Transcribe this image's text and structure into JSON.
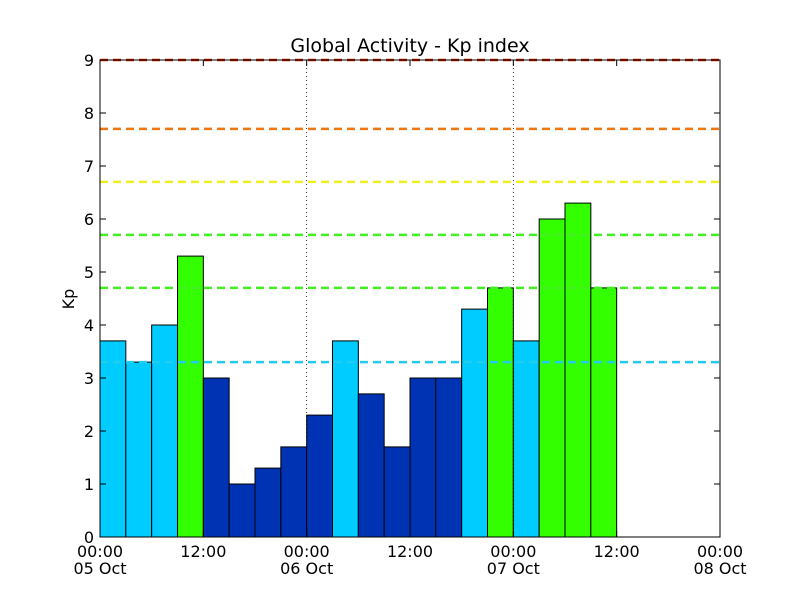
{
  "chart_data": {
    "type": "bar",
    "title": "Global Activity - Kp index",
    "xlabel": "",
    "ylabel": "Kp",
    "ylim": [
      0,
      9
    ],
    "y_ticks": [
      0,
      1,
      2,
      3,
      4,
      5,
      6,
      7,
      8,
      9
    ],
    "x_range_hours": [
      0,
      72
    ],
    "x_ticks": [
      {
        "hour": 0,
        "time": "00:00",
        "date": "05 Oct"
      },
      {
        "hour": 12,
        "time": "12:00",
        "date": ""
      },
      {
        "hour": 24,
        "time": "00:00",
        "date": "06 Oct"
      },
      {
        "hour": 36,
        "time": "12:00",
        "date": ""
      },
      {
        "hour": 48,
        "time": "00:00",
        "date": "07 Oct"
      },
      {
        "hour": 60,
        "time": "12:00",
        "date": ""
      },
      {
        "hour": 72,
        "time": "00:00",
        "date": "08 Oct"
      }
    ],
    "day_boundary_hours": [
      24,
      48
    ],
    "bars": [
      {
        "start_hour": 0,
        "value": 3.7,
        "color": "#00ccff"
      },
      {
        "start_hour": 3,
        "value": 3.3,
        "color": "#00ccff"
      },
      {
        "start_hour": 6,
        "value": 4.0,
        "color": "#00ccff"
      },
      {
        "start_hour": 9,
        "value": 5.3,
        "color": "#33ff00"
      },
      {
        "start_hour": 12,
        "value": 3.0,
        "color": "#0033b3"
      },
      {
        "start_hour": 15,
        "value": 1.0,
        "color": "#0033b3"
      },
      {
        "start_hour": 18,
        "value": 1.3,
        "color": "#0033b3"
      },
      {
        "start_hour": 21,
        "value": 1.7,
        "color": "#0033b3"
      },
      {
        "start_hour": 24,
        "value": 2.3,
        "color": "#0033b3"
      },
      {
        "start_hour": 27,
        "value": 3.7,
        "color": "#00ccff"
      },
      {
        "start_hour": 30,
        "value": 2.7,
        "color": "#0033b3"
      },
      {
        "start_hour": 33,
        "value": 1.7,
        "color": "#0033b3"
      },
      {
        "start_hour": 36,
        "value": 3.0,
        "color": "#0033b3"
      },
      {
        "start_hour": 39,
        "value": 3.0,
        "color": "#0033b3"
      },
      {
        "start_hour": 42,
        "value": 4.3,
        "color": "#00ccff"
      },
      {
        "start_hour": 45,
        "value": 4.7,
        "color": "#33ff00"
      },
      {
        "start_hour": 48,
        "value": 3.7,
        "color": "#00ccff"
      },
      {
        "start_hour": 51,
        "value": 6.0,
        "color": "#33ff00"
      },
      {
        "start_hour": 54,
        "value": 6.3,
        "color": "#33ff00"
      },
      {
        "start_hour": 57,
        "value": 4.7,
        "color": "#33ff00"
      }
    ],
    "bar_width_hours": 3,
    "threshold_lines": [
      {
        "value": 3.3,
        "color": "#22ccee"
      },
      {
        "value": 4.7,
        "color": "#44ee22"
      },
      {
        "value": 5.7,
        "color": "#44ee22"
      },
      {
        "value": 6.7,
        "color": "#eeee22"
      },
      {
        "value": 7.7,
        "color": "#ee7711"
      },
      {
        "value": 9.0,
        "color": "#cc2200"
      }
    ],
    "grid": false,
    "legend": "none"
  }
}
